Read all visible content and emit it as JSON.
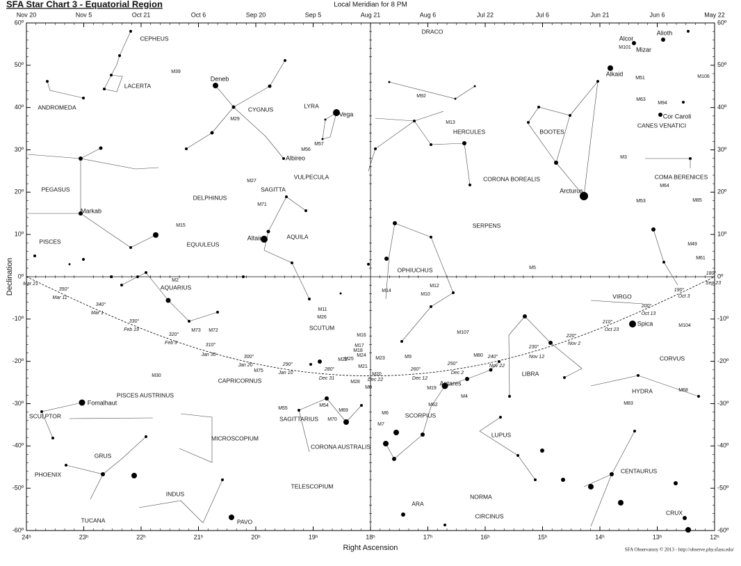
{
  "header": {
    "title": "SFA Star Chart 3 - Equatorial Region",
    "subtitle": "Local Meridian for 8 PM"
  },
  "axes": {
    "x_label": "Right Ascension",
    "y_label": "Declination",
    "ra_ticks": [
      {
        "value": 24,
        "label": "24ʰ"
      },
      {
        "value": 23,
        "label": "23ʰ"
      },
      {
        "value": 22,
        "label": "22ʰ"
      },
      {
        "value": 21,
        "label": "21ʰ"
      },
      {
        "value": 20,
        "label": "20ʰ"
      },
      {
        "value": 19,
        "label": "19ʰ"
      },
      {
        "value": 18,
        "label": "18ʰ"
      },
      {
        "value": 17,
        "label": "17ʰ"
      },
      {
        "value": 16,
        "label": "16ʰ"
      },
      {
        "value": 15,
        "label": "15ʰ"
      },
      {
        "value": 14,
        "label": "14ʰ"
      },
      {
        "value": 13,
        "label": "13ʰ"
      },
      {
        "value": 12,
        "label": "12ʰ"
      }
    ],
    "dec_ticks": [
      {
        "value": 60,
        "label": "60º"
      },
      {
        "value": 50,
        "label": "50º"
      },
      {
        "value": 40,
        "label": "40º"
      },
      {
        "value": 30,
        "label": "30º"
      },
      {
        "value": 20,
        "label": "20º"
      },
      {
        "value": 10,
        "label": "10º"
      },
      {
        "value": 0,
        "label": "0º"
      },
      {
        "value": -10,
        "label": "-10º"
      },
      {
        "value": -20,
        "label": "-20º"
      },
      {
        "value": -30,
        "label": "-30º"
      },
      {
        "value": -40,
        "label": "-40º"
      },
      {
        "value": -50,
        "label": "-50º"
      },
      {
        "value": -60,
        "label": "-60º"
      }
    ],
    "date_ticks": [
      "Nov 20",
      "Nov 5",
      "Oct 21",
      "Oct 6",
      "Sep 20",
      "Sep 5",
      "Aug 21",
      "Aug 6",
      "Jul 22",
      "Jul 6",
      "Jun 21",
      "Jun 6",
      "May 22"
    ]
  },
  "constellations": [
    "CEPHEUS",
    "LACERTA",
    "ANDROMEDA",
    "CYGNUS",
    "LYRA",
    "DRACO",
    "HERCULES",
    "BOOTES",
    "CANES VENATICI",
    "PEGASUS",
    "DELPHINUS",
    "SAGITTA",
    "VULPECULA",
    "CORONA BOREALIS",
    "COMA BERENICES",
    "SERPENS",
    "EQUULEUS",
    "AQUILA",
    "PISCES",
    "OPHIUCHUS",
    "AQUARIUS",
    "VIRGO",
    "SCUTUM",
    "CAPRICORNUS",
    "LIBRA",
    "CORVUS",
    "HYDRA",
    "PISCES AUSTRINUS",
    "SCULPTOR",
    "SAGITTARIUS",
    "SCORPIUS",
    "MICROSCOPIUM",
    "LUPUS",
    "CORONA AUSTRALIS",
    "GRUS",
    "PHOENIX",
    "CENTAURUS",
    "INDUS",
    "TELESCOPIUM",
    "NORMA",
    "ARA",
    "CIRCINUS",
    "CRUX",
    "TUCANA",
    "PAVO"
  ],
  "stars": [
    "Deneb",
    "Vega",
    "Albireo",
    "Altair",
    "Markab",
    "Fomalhaut",
    "Antares",
    "Arcturus",
    "Spica",
    "Alkaid",
    "Alcor",
    "Mizar",
    "Alioth",
    "Cor Caroli"
  ],
  "deep_sky": [
    "M39",
    "M29",
    "M56",
    "M57",
    "M27",
    "M71",
    "M15",
    "M92",
    "M13",
    "M2",
    "M72",
    "M73",
    "M14",
    "M12",
    "M10",
    "M11",
    "M26",
    "M16",
    "M17",
    "M18",
    "M24",
    "M25",
    "M23",
    "M9",
    "M107",
    "M80",
    "M4",
    "M19",
    "M20",
    "M21",
    "M8",
    "M22",
    "M28",
    "M75",
    "M30",
    "M55",
    "M54",
    "M70",
    "M69",
    "M6",
    "M7",
    "M62",
    "M5",
    "M3",
    "M53",
    "M64",
    "M85",
    "M101",
    "M51",
    "M63",
    "M94",
    "M106",
    "M49",
    "M61",
    "M104",
    "M68",
    "M83"
  ],
  "ecliptic": {
    "longitudes": [
      "350°",
      "340°",
      "330°",
      "320°",
      "310°",
      "300°",
      "290°",
      "280°",
      "260°",
      "250°",
      "240°",
      "230°",
      "220°",
      "210°",
      "200°",
      "190°",
      "180°"
    ],
    "dates": [
      "Mar 21",
      "Mar 11",
      "Mar 1",
      "Feb 19",
      "Feb 9",
      "Jan 30",
      "Jan 20",
      "Jan 10",
      "Dec 31",
      "Dec 22",
      "Dec 12",
      "Dec 2",
      "Nov 22",
      "Nov 12",
      "Nov 2",
      "Oct 23",
      "Oct 13",
      "Oct 3",
      "Sep 23"
    ]
  },
  "credit": "SFA Observatory © 2013 - http://observe.phy.sfasu.edu/"
}
